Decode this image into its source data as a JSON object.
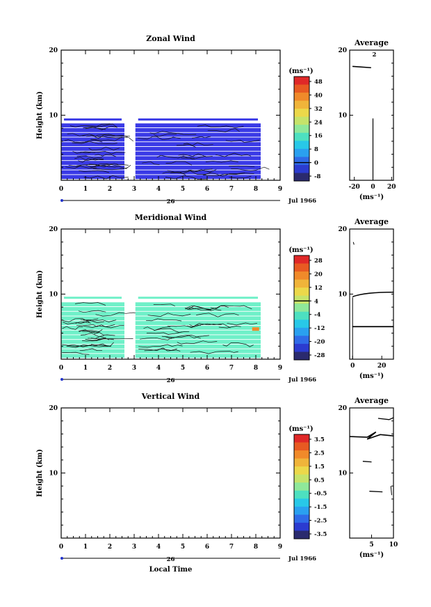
{
  "chart_data": [
    {
      "type": "heatmap",
      "title": "Zonal Wind",
      "ylabel": "Height (km)",
      "xticks": [
        "0",
        "1",
        "2",
        "3",
        "4",
        "5",
        "6",
        "7",
        "8",
        "9"
      ],
      "yticks": [
        "10",
        "20"
      ],
      "date_day": "26",
      "date_label": "Jul 1966",
      "colorbar": {
        "unit": "(ms⁻¹)",
        "ticks": [
          "48",
          "40",
          "32",
          "24",
          "16",
          "8",
          "0",
          "-8"
        ],
        "zero_label": "0"
      },
      "profile": {
        "title": "Average",
        "xticks": [
          "-20",
          "0",
          "20"
        ],
        "yticks": [
          "10",
          "20"
        ],
        "xlabel": "(ms⁻¹)",
        "top_note": "2"
      }
    },
    {
      "type": "heatmap",
      "title": "Meridional Wind",
      "ylabel": "Height (km)",
      "xticks": [
        "0",
        "1",
        "2",
        "3",
        "4",
        "5",
        "6",
        "7",
        "8",
        "9"
      ],
      "yticks": [
        "10",
        "20"
      ],
      "date_day": "26",
      "date_label": "Jul 1966",
      "colorbar": {
        "unit": "(ms⁻¹)",
        "ticks": [
          "28",
          "20",
          "12",
          "4",
          "-4",
          "-12",
          "-20",
          "-28"
        ],
        "zero_label": "4"
      },
      "profile": {
        "title": "Average",
        "xticks": [
          "0",
          "20"
        ],
        "yticks": [
          "10",
          "20"
        ],
        "xlabel": "(ms⁻¹)"
      }
    },
    {
      "type": "heatmap",
      "title": "Vertical Wind",
      "ylabel": "Height (km)",
      "xlabel": "Local Time",
      "xticks": [
        "0",
        "1",
        "2",
        "3",
        "4",
        "5",
        "6",
        "7",
        "8",
        "9"
      ],
      "yticks": [
        "10",
        "20"
      ],
      "date_day": "26",
      "date_label": "Jul 1966",
      "colorbar": {
        "unit": "(ms⁻¹)",
        "ticks": [
          "3.5",
          "2.5",
          "1.5",
          "0.5",
          "-0.5",
          "-1.5",
          "-2.5",
          "-3.5"
        ]
      },
      "profile": {
        "title": "Average",
        "xticks": [
          "5",
          "10"
        ],
        "yticks": [
          "10",
          "20"
        ],
        "xlabel": "(ms⁻¹)"
      }
    }
  ],
  "colors": {
    "zonal_fill": "#3a3ae6",
    "meridional_fill": "#6ff0c8",
    "palette": [
      "#2a2a6e",
      "#2b3bd0",
      "#2f6be8",
      "#2aa0f0",
      "#28c8e8",
      "#4de0c0",
      "#8fe89a",
      "#c6e36a",
      "#ecd84a",
      "#f0b43a",
      "#f08a2a",
      "#e85a22",
      "#e02828"
    ]
  }
}
